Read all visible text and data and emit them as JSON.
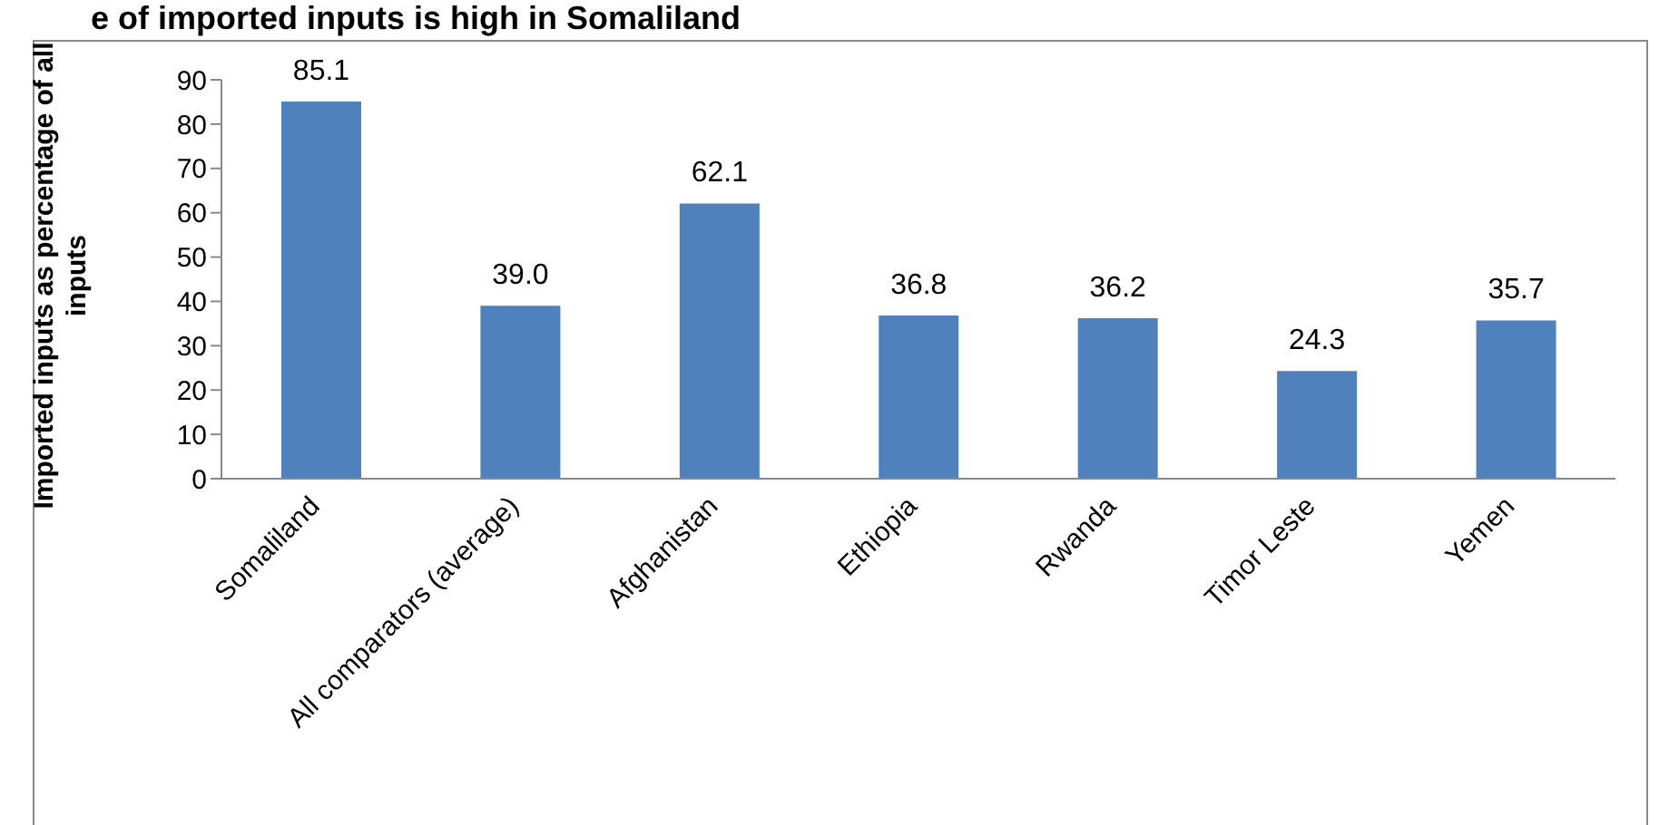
{
  "chart_data": {
    "type": "bar",
    "title": "e of imported inputs is high in Somaliland",
    "ylabel": "Imported inputs as percentage of all inputs",
    "categories": [
      "Somaliland",
      "All comparators (average)",
      "Afghanistan",
      "Ethiopia",
      "Rwanda",
      "Timor Leste",
      "Yemen"
    ],
    "values": [
      85.1,
      39.0,
      62.1,
      36.8,
      36.2,
      24.3,
      35.7
    ],
    "value_labels": [
      "85.1",
      "39.0",
      "62.1",
      "36.8",
      "36.2",
      "24.3",
      "35.7"
    ],
    "color": "#4f81bd",
    "ylim": [
      0,
      90
    ],
    "yticks": [
      0,
      10,
      20,
      30,
      40,
      50,
      60,
      70,
      80,
      90
    ],
    "grid": false,
    "legend": false
  }
}
